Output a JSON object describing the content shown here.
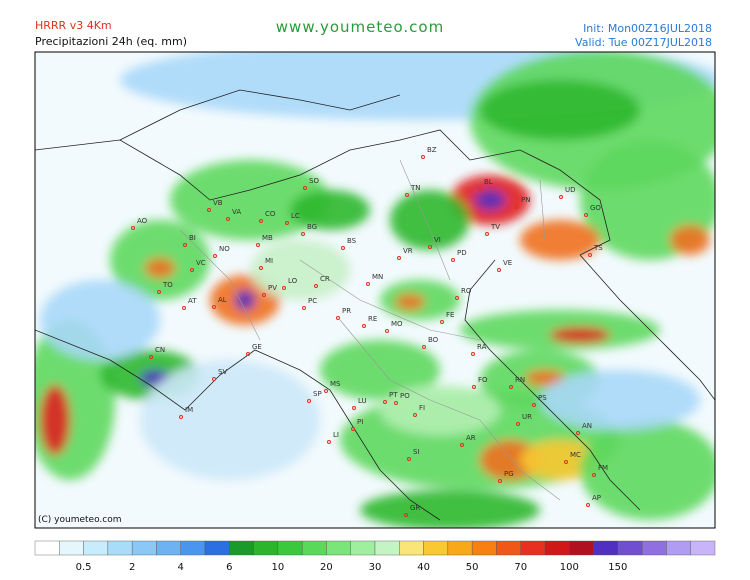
{
  "header": {
    "model": "HRRR v3 4Km",
    "product": "Precipitazioni 24h (eq. mm)",
    "site": "www.youmeteo.com",
    "init": "Init: Mon00Z16JUL2018",
    "valid": "Valid: Tue 00Z17JUL2018"
  },
  "map": {
    "copyright": "(C) youmeteo.com",
    "cities": [
      "BZ",
      "TN",
      "BL",
      "UD",
      "PN",
      "TV",
      "VE",
      "PD",
      "VI",
      "VR",
      "SO",
      "VB",
      "VA",
      "CO",
      "LC",
      "BG",
      "BS",
      "MB",
      "MI",
      "NO",
      "BI",
      "AO",
      "VC",
      "TO",
      "AT",
      "AL",
      "PV",
      "LO",
      "CR",
      "PC",
      "MN",
      "PR",
      "RE",
      "MO",
      "FE",
      "RO",
      "BO",
      "RA",
      "FO",
      "RN",
      "PS",
      "AN",
      "MC",
      "FM",
      "AP",
      "PG",
      "AR",
      "SI",
      "FI",
      "PT",
      "PO",
      "LU",
      "PI",
      "LI",
      "MS",
      "SP",
      "GE",
      "SV",
      "IM",
      "CN",
      "UR",
      "GR",
      "GO",
      "TS"
    ]
  },
  "legend": {
    "ticks": [
      "0.5",
      "2",
      "4",
      "6",
      "10",
      "20",
      "30",
      "40",
      "50",
      "70",
      "100",
      "150"
    ]
  }
}
